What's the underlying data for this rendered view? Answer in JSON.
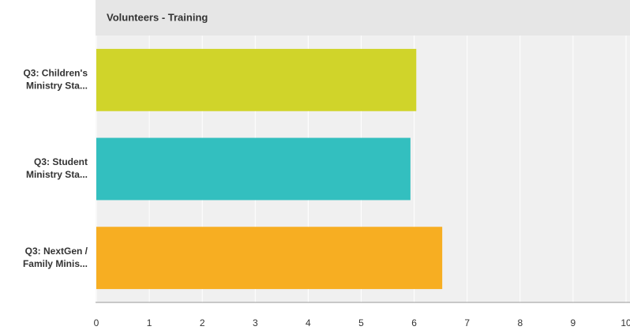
{
  "chart_data": {
    "type": "hbar",
    "title": "Volunteers - Training",
    "categories": [
      [
        "Q3: Children's",
        "Ministry Sta..."
      ],
      [
        "Q3: Student",
        "Ministry Sta..."
      ],
      [
        "Q3: NextGen /",
        "Family Minis..."
      ]
    ],
    "values": [
      6.04,
      5.93,
      6.53
    ],
    "colors": [
      "#d0d42a",
      "#33bfbf",
      "#f7ae22"
    ],
    "xlim": [
      0,
      10
    ],
    "xticks": [
      0,
      1,
      2,
      3,
      4,
      5,
      6,
      7,
      8,
      9,
      10
    ],
    "grid": true
  }
}
